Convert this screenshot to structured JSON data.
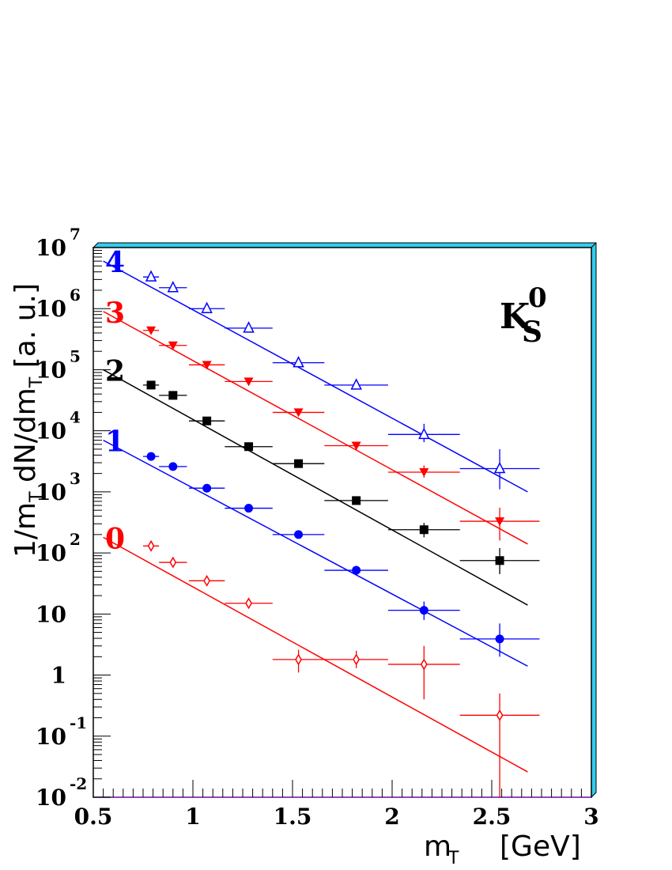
{
  "chart_data": {
    "type": "scatter",
    "annotation": {
      "base": "K",
      "sub": "S",
      "sup": "0"
    },
    "xlabel": {
      "main": "m",
      "sub": "T",
      "unit": "[GeV]"
    },
    "ylabel": {
      "p1": "1/m",
      "s1": "T",
      "p2": " dN/dm",
      "s2": "T",
      "unit": "  [a. u.]"
    },
    "xlim": [
      0.5,
      3.0
    ],
    "ylim": [
      0.01,
      10000000
    ],
    "yscale": "log",
    "x_ticks": [
      {
        "value": 0.5,
        "label": "0.5"
      },
      {
        "value": 1.0,
        "label": "1"
      },
      {
        "value": 1.5,
        "label": "1.5"
      },
      {
        "value": 2.0,
        "label": "2"
      },
      {
        "value": 2.5,
        "label": "2.5"
      },
      {
        "value": 3.0,
        "label": "3"
      }
    ],
    "y_ticks": [
      {
        "value": 0.01,
        "base": "10",
        "exp": "-2"
      },
      {
        "value": 0.1,
        "base": "10",
        "exp": "-1"
      },
      {
        "value": 1,
        "base": "1",
        "exp": ""
      },
      {
        "value": 10,
        "base": "10",
        "exp": ""
      },
      {
        "value": 100,
        "base": "10",
        "exp": "2"
      },
      {
        "value": 1000,
        "base": "10",
        "exp": "3"
      },
      {
        "value": 10000,
        "base": "10",
        "exp": "4"
      },
      {
        "value": 100000,
        "base": "10",
        "exp": "5"
      },
      {
        "value": 1000000,
        "base": "10",
        "exp": "6"
      },
      {
        "value": 10000000,
        "base": "10",
        "exp": "7"
      }
    ],
    "grid": false,
    "series": [
      {
        "label": "4",
        "color": "#0000ff",
        "marker": "triangle-open",
        "x": [
          0.79,
          0.9,
          1.07,
          1.28,
          1.53,
          1.82,
          2.16,
          2.54
        ],
        "y": [
          3300000,
          2200000,
          1000000,
          480000,
          130000,
          56000,
          8700,
          2400
        ],
        "xerr": [
          0.04,
          0.07,
          0.09,
          0.12,
          0.13,
          0.16,
          0.18,
          0.2
        ],
        "yerr_low": [
          3000000,
          2050000,
          920000,
          440000,
          118000,
          50000,
          6500,
          1100
        ],
        "yerr_high": [
          3600000,
          2350000,
          1080000,
          520000,
          142000,
          62000,
          13000,
          5000
        ],
        "fit": [
          [
            0.55,
            6000000
          ],
          [
            2.68,
            1000
          ]
        ]
      },
      {
        "label": "3",
        "color": "#ff0000",
        "marker": "triangle-down-filled",
        "x": [
          0.79,
          0.9,
          1.07,
          1.28,
          1.53,
          1.82,
          2.16,
          2.54
        ],
        "y": [
          440000,
          250000,
          120000,
          64000,
          20000,
          5700,
          2100,
          330
        ],
        "xerr": [
          0.04,
          0.07,
          0.09,
          0.12,
          0.13,
          0.16,
          0.18,
          0.2
        ],
        "yerr_low": [
          410000,
          232000,
          110000,
          58000,
          18000,
          5000,
          1700,
          160
        ],
        "yerr_high": [
          470000,
          268000,
          130000,
          70000,
          22000,
          6400,
          2700,
          550
        ],
        "fit": [
          [
            0.55,
            900000
          ],
          [
            2.68,
            140
          ]
        ]
      },
      {
        "label": "2",
        "color": "#000000",
        "marker": "square-filled",
        "x": [
          0.79,
          0.9,
          1.07,
          1.28,
          1.53,
          1.82,
          2.16,
          2.54
        ],
        "y": [
          56000,
          38000,
          14500,
          5500,
          2900,
          720,
          240,
          75
        ],
        "xerr": [
          0.04,
          0.07,
          0.09,
          0.12,
          0.13,
          0.16,
          0.18,
          0.2
        ],
        "yerr_low": [
          52000,
          35000,
          13300,
          5000,
          2600,
          640,
          180,
          45
        ],
        "yerr_high": [
          60000,
          41000,
          15700,
          6000,
          3200,
          800,
          310,
          120
        ],
        "fit": [
          [
            0.55,
            100000
          ],
          [
            2.68,
            14
          ]
        ]
      },
      {
        "label": "1",
        "color": "#0000ff",
        "marker": "circle-filled",
        "x": [
          0.79,
          0.9,
          1.07,
          1.28,
          1.53,
          1.82,
          2.16,
          2.54
        ],
        "y": [
          3800,
          2600,
          1150,
          540,
          200,
          52,
          11.5,
          3.9
        ],
        "xerr": [
          0.04,
          0.07,
          0.09,
          0.12,
          0.13,
          0.16,
          0.18,
          0.2
        ],
        "yerr_low": [
          3500,
          2400,
          1050,
          490,
          180,
          44,
          8,
          2
        ],
        "yerr_high": [
          4100,
          2800,
          1250,
          590,
          220,
          60,
          16,
          7
        ],
        "fit": [
          [
            0.55,
            7000
          ],
          [
            2.68,
            1.4
          ]
        ]
      },
      {
        "label": "0",
        "color": "#ff0000",
        "marker": "diamond-open",
        "x": [
          0.79,
          0.9,
          1.07,
          1.28,
          1.53,
          1.82,
          2.16,
          2.54
        ],
        "y": [
          130,
          70,
          35,
          15,
          1.8,
          1.8,
          1.5,
          0.22
        ],
        "xerr": [
          0.04,
          0.07,
          0.09,
          0.12,
          0.13,
          0.16,
          0.18,
          0.2
        ],
        "yerr_low": [
          115,
          60,
          30,
          12.5,
          1.1,
          1.3,
          0.4,
          0.01
        ],
        "yerr_high": [
          145,
          80,
          40,
          17.5,
          2.6,
          2.5,
          3.0,
          0.5
        ],
        "fit": [
          [
            0.55,
            180
          ],
          [
            2.68,
            0.026
          ]
        ]
      }
    ]
  }
}
